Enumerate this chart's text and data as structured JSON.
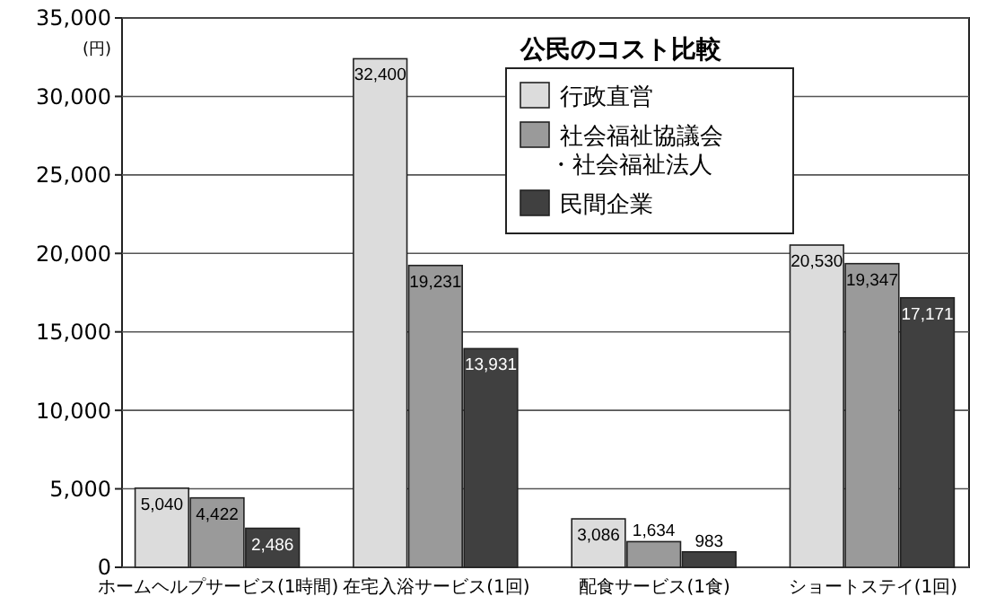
{
  "chart_data": {
    "type": "bar",
    "title": "公民のコスト比較",
    "ylabel": "(円)",
    "categories": [
      "ホームヘルプサービス(1時間)",
      "在宅入浴サービス(1回)",
      "配食サービス(1食)",
      "ショートステイ(1回)"
    ],
    "series": [
      {
        "name": "行政直営",
        "color": "#dcdcdc",
        "values": [
          5040,
          32400,
          3086,
          20530
        ],
        "value_labels": [
          "5,040",
          "32,400",
          "3,086",
          "20,530"
        ]
      },
      {
        "name": "社会福祉協議会・社会福祉法人",
        "color": "#9a9a9a",
        "values": [
          4422,
          19231,
          1634,
          19347
        ],
        "value_labels": [
          "4,422",
          "19,231",
          "1,634",
          "19,347"
        ]
      },
      {
        "name": "民間企業",
        "color": "#404040",
        "values": [
          2486,
          13931,
          983,
          17171
        ],
        "value_labels": [
          "2,486",
          "13,931",
          "983",
          "17,171"
        ]
      }
    ],
    "ylim": [
      0,
      35000
    ],
    "yticks": [
      0,
      {
        "value": 5000,
        "label": "5,000"
      },
      {
        "value": 10000,
        "label": "10,000"
      },
      {
        "value": 15000,
        "label": "15,000"
      },
      {
        "value": 20000,
        "label": "20,000"
      },
      {
        "value": 25000,
        "label": "25,000"
      },
      {
        "value": 30000,
        "label": "30,000"
      },
      {
        "value": 35000,
        "label": "35,000"
      }
    ],
    "grid": "y",
    "legend": "top"
  }
}
